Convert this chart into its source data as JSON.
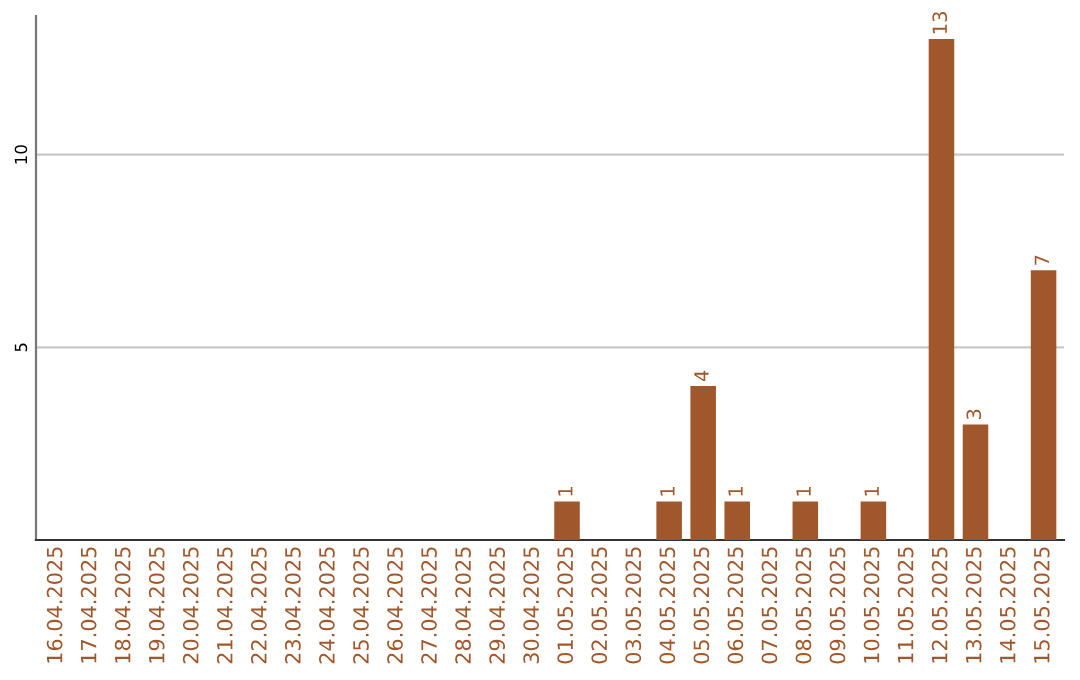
{
  "chart_data": {
    "type": "bar",
    "categories": [
      "16.04.2025",
      "17.04.2025",
      "18.04.2025",
      "19.04.2025",
      "20.04.2025",
      "21.04.2025",
      "22.04.2025",
      "23.04.2025",
      "24.04.2025",
      "25.04.2025",
      "26.04.2025",
      "27.04.2025",
      "28.04.2025",
      "29.04.2025",
      "30.04.2025",
      "01.05.2025",
      "02.05.2025",
      "03.05.2025",
      "04.05.2025",
      "05.05.2025",
      "06.05.2025",
      "07.05.2025",
      "08.05.2025",
      "09.05.2025",
      "10.05.2025",
      "11.05.2025",
      "12.05.2025",
      "13.05.2025",
      "14.05.2025",
      "15.05.2025"
    ],
    "values": [
      0,
      0,
      0,
      0,
      0,
      0,
      0,
      0,
      0,
      0,
      0,
      0,
      0,
      0,
      0,
      1,
      0,
      0,
      1,
      4,
      1,
      0,
      1,
      0,
      1,
      0,
      13,
      3,
      0,
      7
    ],
    "value_labels": [
      null,
      null,
      null,
      null,
      null,
      null,
      null,
      null,
      null,
      null,
      null,
      null,
      null,
      null,
      null,
      "1",
      null,
      null,
      "1",
      "4",
      "1",
      null,
      "1",
      null,
      "1",
      null,
      "13",
      "3",
      null,
      "7"
    ],
    "color": "#a0572b",
    "ylim": [
      0,
      13.6
    ],
    "yticks": [
      5,
      10
    ],
    "grid": "y",
    "legend": false
  }
}
